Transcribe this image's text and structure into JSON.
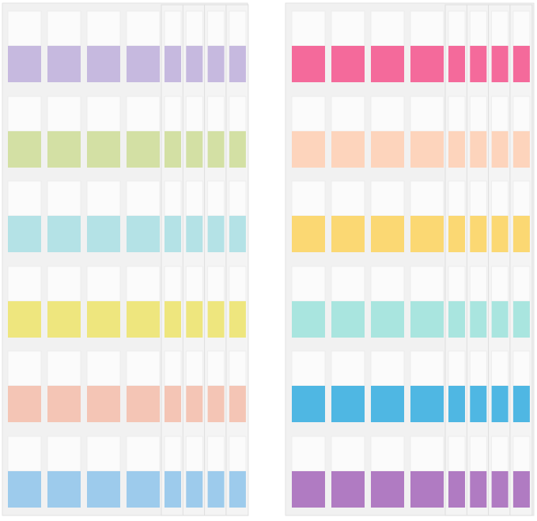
{
  "sheets": [
    {
      "colors": [
        "#c6b9df",
        "#d3e0a4",
        "#b4e2e6",
        "#eee67e",
        "#f4c5b5",
        "#9dcbec"
      ]
    },
    {
      "colors": [
        "#f46a9b",
        "#fdd4bc",
        "#fbd873",
        "#a9e5df",
        "#4fb7e3",
        "#b07bc2"
      ]
    }
  ]
}
